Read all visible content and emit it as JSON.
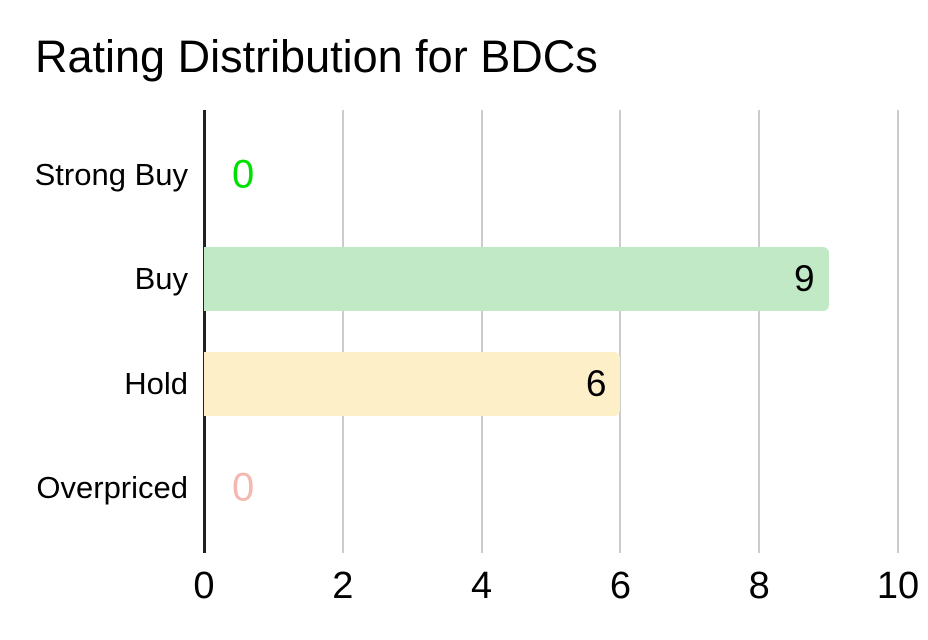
{
  "title": "Rating Distribution for BDCs",
  "chart_data": {
    "type": "bar",
    "orientation": "horizontal",
    "title": "Rating Distribution for BDCs",
    "categories": [
      "Strong Buy",
      "Buy",
      "Hold",
      "Overpriced"
    ],
    "values": [
      0,
      9,
      6,
      0
    ],
    "display_values": [
      "0",
      "9",
      "6",
      "0"
    ],
    "xlabel": "",
    "ylabel": "",
    "xlim": [
      0,
      10
    ],
    "xticks": [
      0,
      2,
      4,
      6,
      8,
      10
    ],
    "grid": true,
    "legend_position": "none",
    "bar_colors": [
      null,
      "#c1e9c6",
      "#fdefc8",
      null
    ],
    "label_colors": [
      "#00e000",
      "#000000",
      "#000000",
      "#f4b8b1"
    ],
    "gridline_color": "#cccccc",
    "baseline_color": "#212121",
    "background_color": "#ffffff",
    "text_color": "#000000"
  }
}
